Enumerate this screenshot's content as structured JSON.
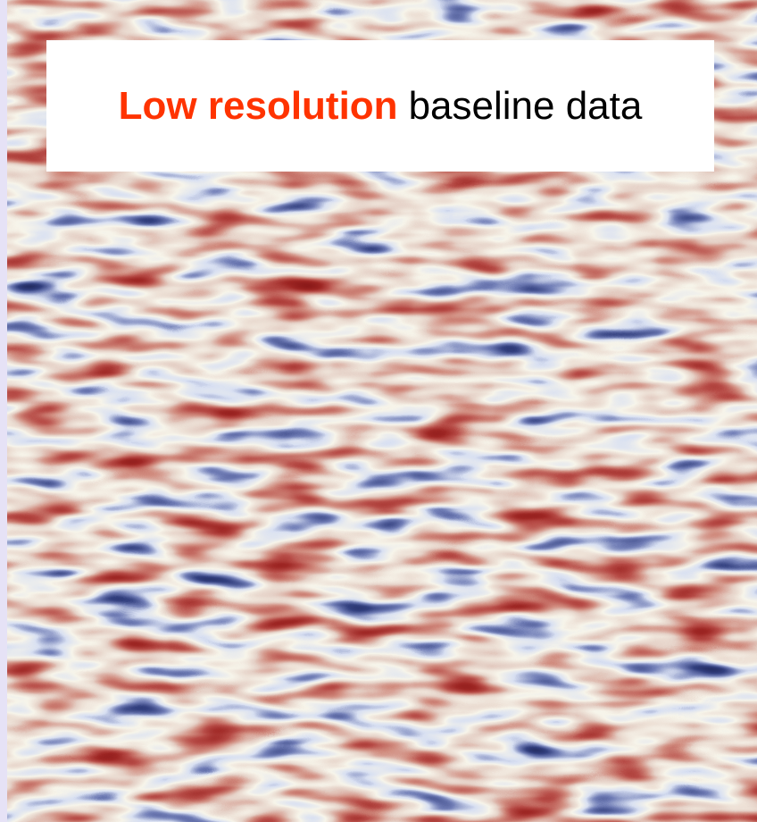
{
  "caption": {
    "highlight": "Low resolution",
    "text": "baseline data"
  }
}
